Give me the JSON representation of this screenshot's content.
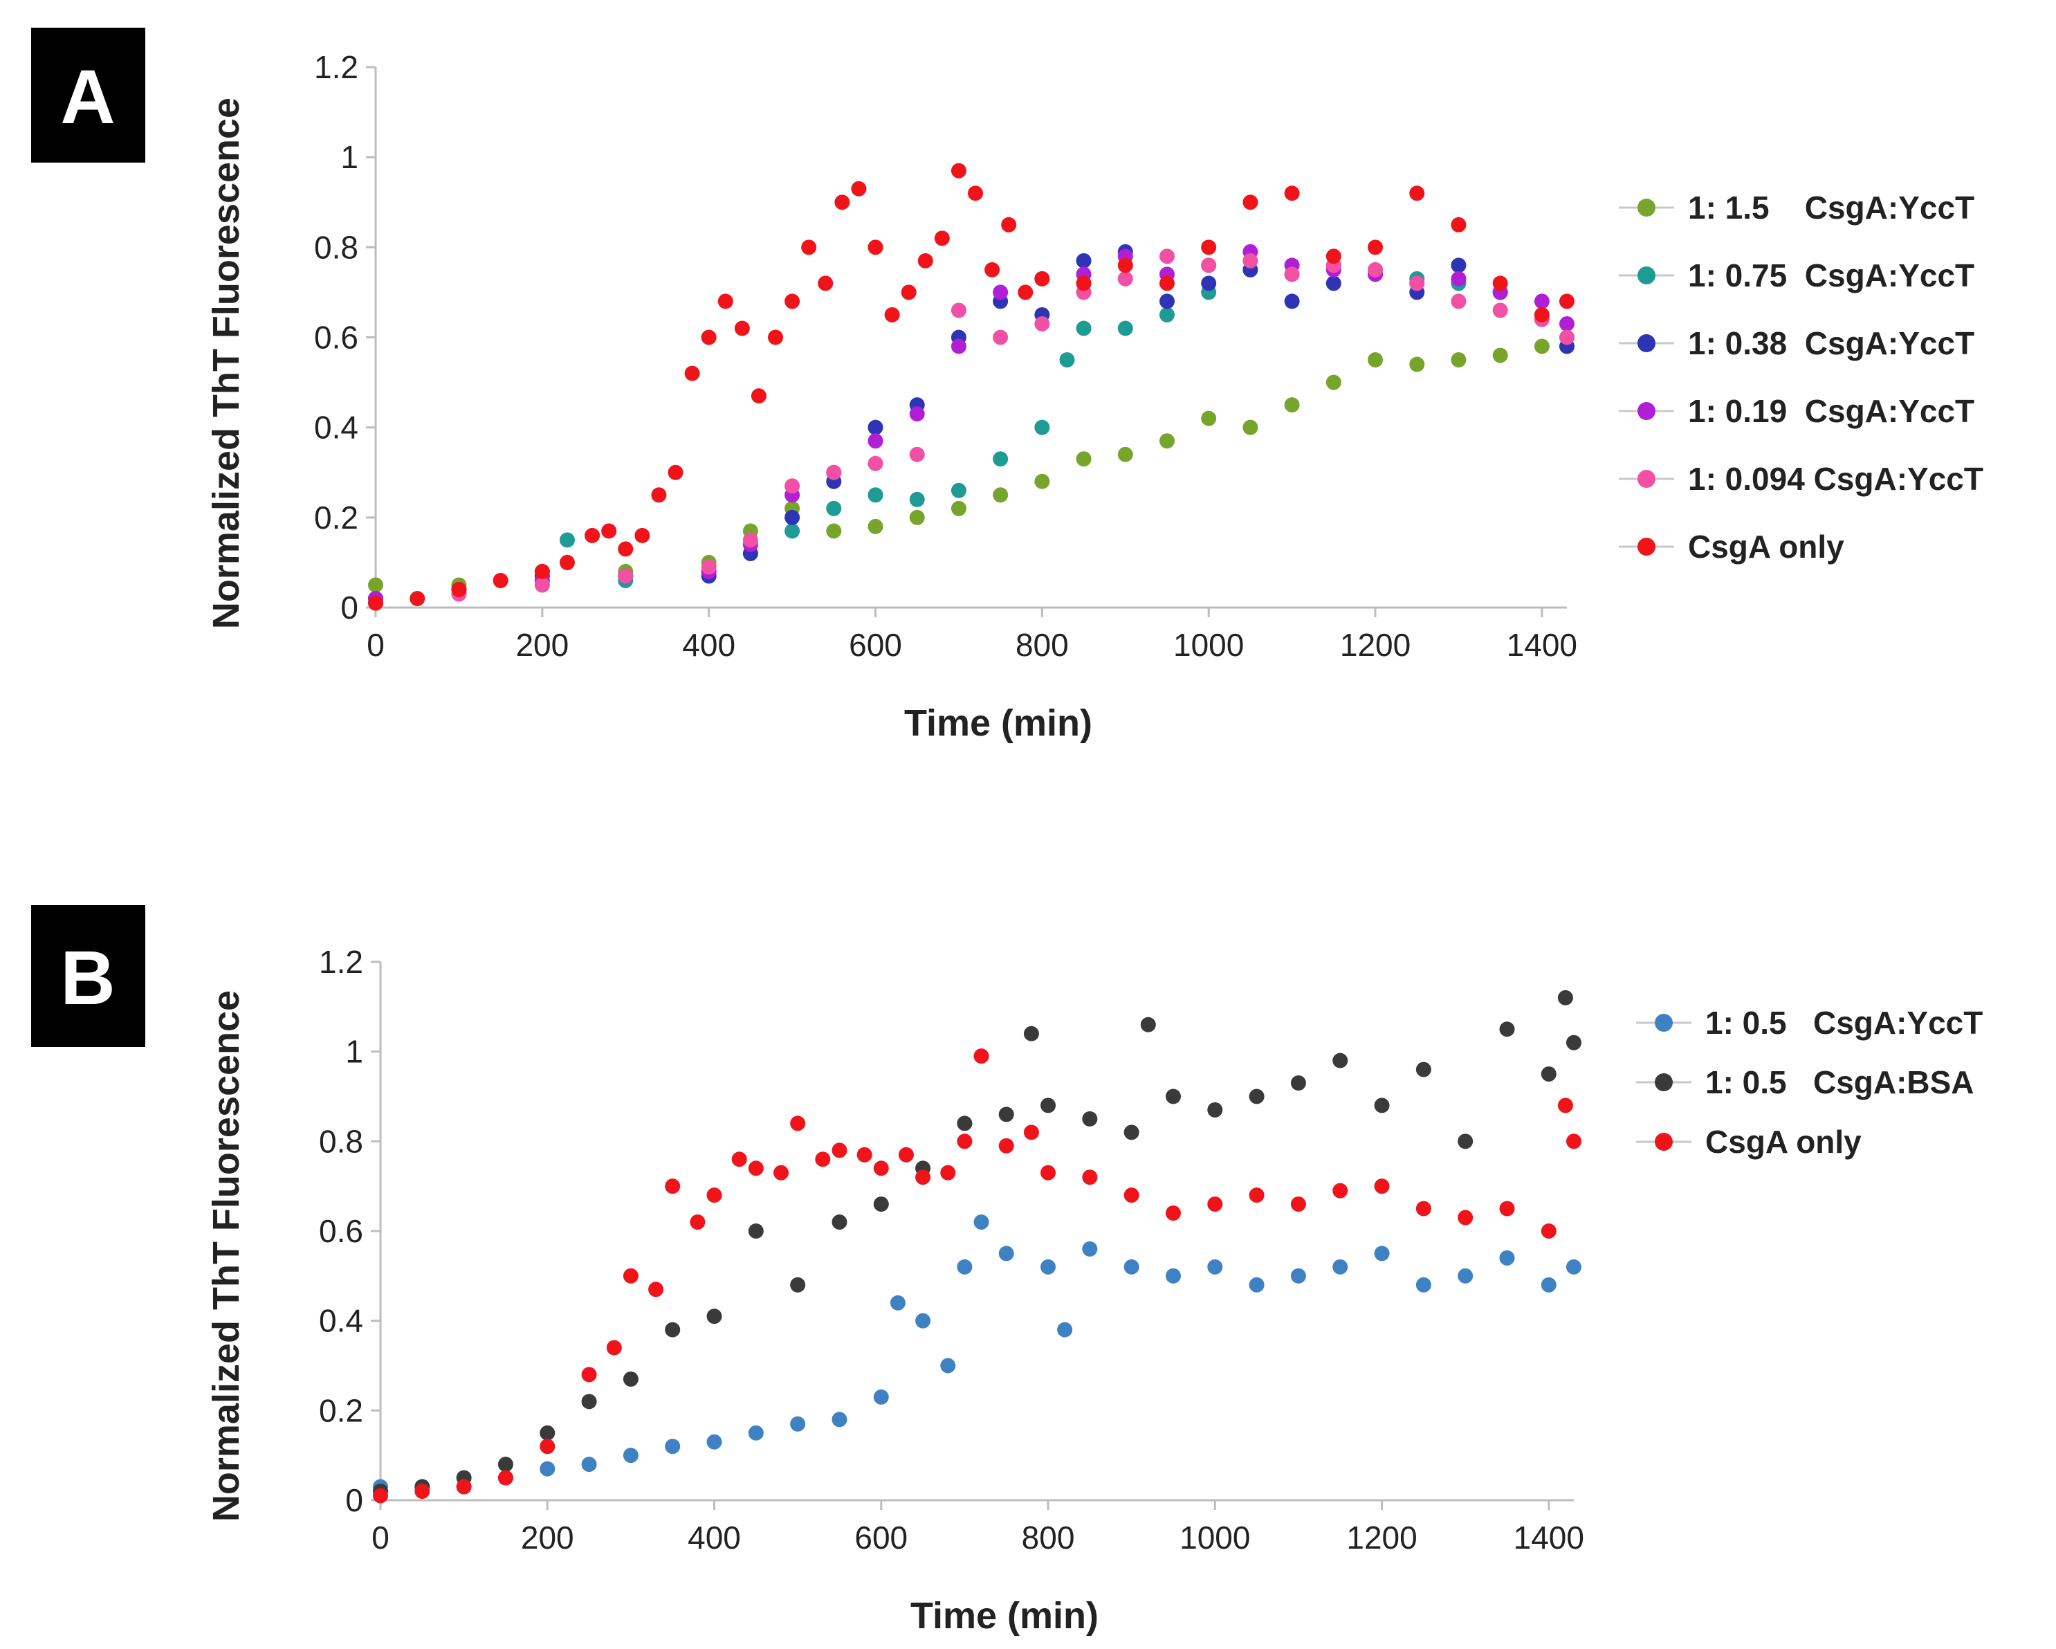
{
  "chart_data": [
    {
      "type": "scatter",
      "panel_label": "A",
      "xlabel": "Time (min)",
      "ylabel": "Normalized ThT Fluorescence",
      "xlim": [
        0,
        1430
      ],
      "ylim": [
        0,
        1.2
      ],
      "xticks": [
        0,
        200,
        400,
        600,
        800,
        1000,
        1200,
        1400
      ],
      "yticks": [
        0,
        0.2,
        0.4,
        0.6,
        0.8,
        1,
        1.2
      ],
      "ytick_labels": [
        "0",
        "0.2",
        "0.4",
        "0.6",
        "0.8",
        "1",
        "1.2"
      ],
      "legend_position": "right",
      "series": [
        {
          "name": "1: 1.5    CsgA:YccT",
          "color": "#77a52c",
          "x": [
            0,
            100,
            200,
            300,
            400,
            450,
            500,
            550,
            600,
            650,
            700,
            750,
            800,
            850,
            900,
            950,
            1000,
            1050,
            1100,
            1150,
            1200,
            1250,
            1300,
            1350,
            1400,
            1430
          ],
          "y": [
            0.05,
            0.05,
            0.08,
            0.08,
            0.1,
            0.17,
            0.22,
            0.17,
            0.18,
            0.2,
            0.22,
            0.25,
            0.28,
            0.33,
            0.34,
            0.37,
            0.42,
            0.4,
            0.45,
            0.5,
            0.55,
            0.54,
            0.55,
            0.56,
            0.58,
            0.6
          ]
        },
        {
          "name": "1: 0.75  CsgA:YccT",
          "color": "#1e9b94",
          "x": [
            0,
            100,
            200,
            230,
            300,
            400,
            450,
            500,
            550,
            600,
            650,
            700,
            750,
            800,
            830,
            850,
            900,
            950,
            1000,
            1050,
            1100,
            1150,
            1200,
            1250,
            1300,
            1350,
            1400,
            1430
          ],
          "y": [
            0.02,
            0.04,
            0.08,
            0.15,
            0.06,
            0.08,
            0.12,
            0.17,
            0.22,
            0.25,
            0.24,
            0.26,
            0.33,
            0.4,
            0.55,
            0.62,
            0.62,
            0.65,
            0.7,
            0.75,
            0.74,
            0.76,
            0.75,
            0.73,
            0.72,
            0.7,
            0.64,
            0.58
          ]
        },
        {
          "name": "1: 0.38  CsgA:YccT",
          "color": "#2e35b5",
          "x": [
            0,
            100,
            200,
            300,
            400,
            450,
            500,
            550,
            600,
            650,
            700,
            750,
            800,
            850,
            900,
            950,
            1000,
            1050,
            1100,
            1150,
            1200,
            1250,
            1300,
            1350,
            1400,
            1430
          ],
          "y": [
            0.02,
            0.04,
            0.07,
            0.07,
            0.07,
            0.12,
            0.2,
            0.28,
            0.4,
            0.45,
            0.6,
            0.68,
            0.65,
            0.77,
            0.79,
            0.68,
            0.72,
            0.75,
            0.68,
            0.72,
            0.74,
            0.7,
            0.76,
            0.7,
            0.64,
            0.58
          ]
        },
        {
          "name": "1: 0.19  CsgA:YccT",
          "color": "#b01fd6",
          "x": [
            0,
            100,
            200,
            300,
            400,
            450,
            500,
            550,
            600,
            650,
            700,
            750,
            800,
            850,
            900,
            950,
            1000,
            1050,
            1100,
            1150,
            1200,
            1250,
            1300,
            1350,
            1400,
            1430
          ],
          "y": [
            0.02,
            0.04,
            0.06,
            0.07,
            0.08,
            0.14,
            0.25,
            0.3,
            0.37,
            0.43,
            0.58,
            0.7,
            0.73,
            0.74,
            0.78,
            0.74,
            0.76,
            0.79,
            0.76,
            0.75,
            0.74,
            0.72,
            0.73,
            0.7,
            0.68,
            0.63
          ]
        },
        {
          "name": "1: 0.094 CsgA:YccT",
          "color": "#f250a5",
          "x": [
            0,
            100,
            200,
            300,
            400,
            450,
            500,
            550,
            600,
            650,
            700,
            750,
            800,
            850,
            900,
            950,
            1000,
            1050,
            1100,
            1150,
            1200,
            1250,
            1300,
            1350,
            1400,
            1430
          ],
          "y": [
            0.01,
            0.03,
            0.05,
            0.07,
            0.09,
            0.15,
            0.27,
            0.3,
            0.32,
            0.34,
            0.66,
            0.6,
            0.63,
            0.7,
            0.73,
            0.78,
            0.76,
            0.77,
            0.74,
            0.76,
            0.75,
            0.72,
            0.68,
            0.66,
            0.64,
            0.6
          ]
        },
        {
          "name": "CsgA only",
          "color": "#f0141a",
          "x": [
            0,
            50,
            100,
            150,
            200,
            230,
            260,
            280,
            300,
            320,
            340,
            360,
            380,
            400,
            420,
            440,
            460,
            480,
            500,
            520,
            540,
            560,
            580,
            600,
            620,
            640,
            660,
            680,
            700,
            720,
            740,
            760,
            780,
            800,
            850,
            900,
            950,
            1000,
            1050,
            1100,
            1150,
            1200,
            1250,
            1300,
            1350,
            1400,
            1430
          ],
          "y": [
            0.01,
            0.02,
            0.04,
            0.06,
            0.08,
            0.1,
            0.16,
            0.17,
            0.13,
            0.16,
            0.25,
            0.3,
            0.52,
            0.6,
            0.68,
            0.62,
            0.47,
            0.6,
            0.68,
            0.8,
            0.72,
            0.9,
            0.93,
            0.8,
            0.65,
            0.7,
            0.77,
            0.82,
            0.97,
            0.92,
            0.75,
            0.85,
            0.7,
            0.73,
            0.72,
            0.76,
            0.72,
            0.8,
            0.9,
            0.92,
            0.78,
            0.8,
            0.92,
            0.85,
            0.72,
            0.65,
            0.68
          ]
        }
      ]
    },
    {
      "type": "scatter",
      "panel_label": "B",
      "xlabel": "Time (min)",
      "ylabel": "Normalized ThT Fluorescence",
      "xlim": [
        0,
        1430
      ],
      "ylim": [
        0,
        1.2
      ],
      "xticks": [
        0,
        200,
        400,
        600,
        800,
        1000,
        1200,
        1400
      ],
      "yticks": [
        0,
        0.2,
        0.4,
        0.6,
        0.8,
        1,
        1.2
      ],
      "ytick_labels": [
        "0",
        "0.2",
        "0.4",
        "0.6",
        "0.8",
        "1",
        "1.2"
      ],
      "legend_position": "right",
      "series": [
        {
          "name": "1: 0.5   CsgA:YccT",
          "color": "#3f82c4",
          "x": [
            0,
            50,
            100,
            150,
            200,
            250,
            300,
            350,
            400,
            450,
            500,
            550,
            600,
            620,
            650,
            680,
            700,
            720,
            750,
            800,
            820,
            850,
            900,
            950,
            1000,
            1050,
            1100,
            1150,
            1200,
            1250,
            1300,
            1350,
            1400,
            1430
          ],
          "y": [
            0.03,
            0.03,
            0.03,
            0.05,
            0.07,
            0.08,
            0.1,
            0.12,
            0.13,
            0.15,
            0.17,
            0.18,
            0.23,
            0.44,
            0.4,
            0.3,
            0.52,
            0.62,
            0.55,
            0.52,
            0.38,
            0.56,
            0.52,
            0.5,
            0.52,
            0.48,
            0.5,
            0.52,
            0.55,
            0.48,
            0.5,
            0.54,
            0.48,
            0.52
          ]
        },
        {
          "name": "1: 0.5   CsgA:BSA",
          "color": "#3a3a3a",
          "x": [
            0,
            50,
            100,
            150,
            200,
            250,
            300,
            350,
            400,
            450,
            500,
            550,
            600,
            650,
            700,
            750,
            780,
            800,
            850,
            900,
            920,
            950,
            1000,
            1050,
            1100,
            1150,
            1200,
            1250,
            1300,
            1350,
            1400,
            1420,
            1430
          ],
          "y": [
            0.02,
            0.03,
            0.05,
            0.08,
            0.15,
            0.22,
            0.27,
            0.38,
            0.41,
            0.6,
            0.48,
            0.62,
            0.66,
            0.74,
            0.84,
            0.86,
            1.04,
            0.88,
            0.85,
            0.82,
            1.06,
            0.9,
            0.87,
            0.9,
            0.93,
            0.98,
            0.88,
            0.96,
            0.8,
            1.05,
            0.95,
            1.12,
            1.02
          ]
        },
        {
          "name": "CsgA only",
          "color": "#f0141a",
          "x": [
            0,
            50,
            100,
            150,
            200,
            250,
            280,
            300,
            330,
            350,
            380,
            400,
            430,
            450,
            480,
            500,
            530,
            550,
            580,
            600,
            630,
            650,
            680,
            700,
            720,
            750,
            780,
            800,
            850,
            900,
            950,
            1000,
            1050,
            1100,
            1150,
            1200,
            1250,
            1300,
            1350,
            1400,
            1420,
            1430
          ],
          "y": [
            0.01,
            0.02,
            0.03,
            0.05,
            0.12,
            0.28,
            0.34,
            0.5,
            0.47,
            0.7,
            0.62,
            0.68,
            0.76,
            0.74,
            0.73,
            0.84,
            0.76,
            0.78,
            0.77,
            0.74,
            0.77,
            0.72,
            0.73,
            0.8,
            0.99,
            0.79,
            0.82,
            0.73,
            0.72,
            0.68,
            0.64,
            0.66,
            0.68,
            0.66,
            0.69,
            0.7,
            0.65,
            0.63,
            0.65,
            0.6,
            0.88,
            0.8
          ]
        }
      ]
    }
  ]
}
